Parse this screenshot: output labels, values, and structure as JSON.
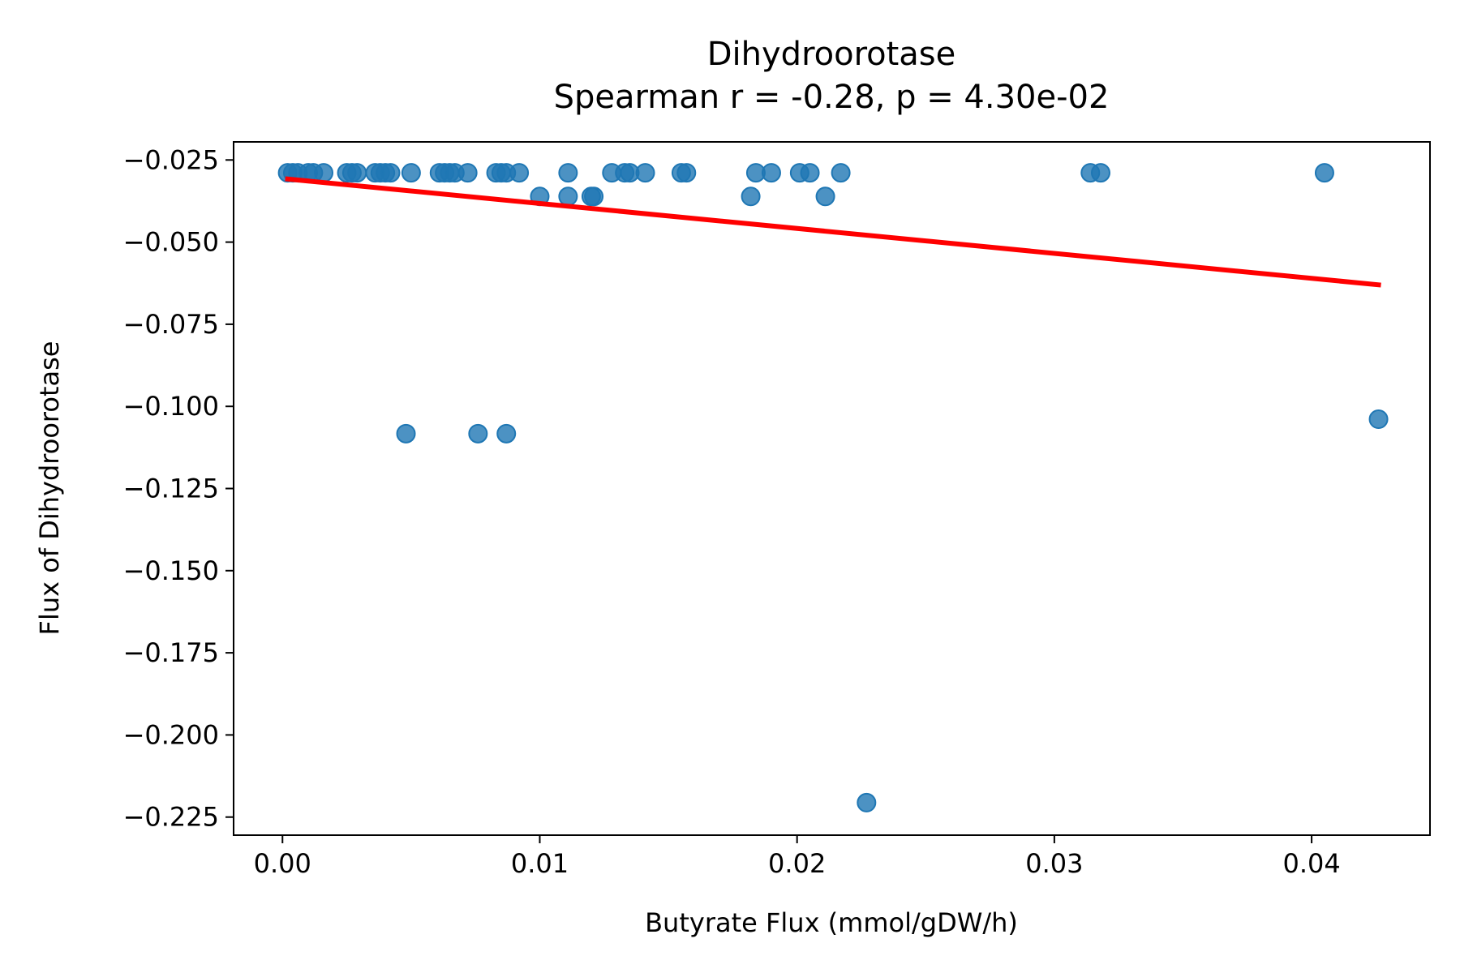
{
  "chart_data": {
    "type": "scatter",
    "title": "Dihydroorotase",
    "subtitle": "Spearman r = -0.28, p = 4.30e-02",
    "xlabel": "Butyrate Flux (mmol/gDW/h)",
    "ylabel": "Flux of Dihydroorotase",
    "xlim": [
      -0.0019,
      0.0446
    ],
    "ylim": [
      -0.2305,
      -0.0195
    ],
    "xticks": [
      0.0,
      0.01,
      0.02,
      0.03,
      0.04
    ],
    "xtick_labels": [
      "0.00",
      "0.01",
      "0.02",
      "0.03",
      "0.04"
    ],
    "yticks": [
      -0.025,
      -0.05,
      -0.075,
      -0.1,
      -0.125,
      -0.15,
      -0.175,
      -0.2,
      -0.225
    ],
    "ytick_labels": [
      "−0.025",
      "−0.050",
      "−0.075",
      "−0.100",
      "−0.125",
      "−0.150",
      "−0.175",
      "−0.200",
      "−0.225"
    ],
    "grid": false,
    "point_color": "#1f77b4",
    "line_color": "#ff0000",
    "points": [
      [
        0.0002,
        -0.0289
      ],
      [
        0.0004,
        -0.0289
      ],
      [
        0.0006,
        -0.0289
      ],
      [
        0.001,
        -0.0289
      ],
      [
        0.0012,
        -0.0289
      ],
      [
        0.0016,
        -0.0289
      ],
      [
        0.0025,
        -0.0289
      ],
      [
        0.0027,
        -0.0289
      ],
      [
        0.0029,
        -0.0289
      ],
      [
        0.0036,
        -0.0289
      ],
      [
        0.0038,
        -0.0289
      ],
      [
        0.004,
        -0.0289
      ],
      [
        0.0042,
        -0.0289
      ],
      [
        0.005,
        -0.0289
      ],
      [
        0.0061,
        -0.0289
      ],
      [
        0.0063,
        -0.0289
      ],
      [
        0.0065,
        -0.0289
      ],
      [
        0.0067,
        -0.0289
      ],
      [
        0.0072,
        -0.0289
      ],
      [
        0.0083,
        -0.0289
      ],
      [
        0.0085,
        -0.0289
      ],
      [
        0.0087,
        -0.0289
      ],
      [
        0.0092,
        -0.0289
      ],
      [
        0.0111,
        -0.0289
      ],
      [
        0.0128,
        -0.0289
      ],
      [
        0.0133,
        -0.0289
      ],
      [
        0.0135,
        -0.0289
      ],
      [
        0.0141,
        -0.0289
      ],
      [
        0.0155,
        -0.0289
      ],
      [
        0.0157,
        -0.0289
      ],
      [
        0.0184,
        -0.0289
      ],
      [
        0.019,
        -0.0289
      ],
      [
        0.0201,
        -0.0289
      ],
      [
        0.0205,
        -0.0289
      ],
      [
        0.0217,
        -0.0289
      ],
      [
        0.0314,
        -0.0289
      ],
      [
        0.0318,
        -0.0289
      ],
      [
        0.0405,
        -0.0289
      ],
      [
        0.01,
        -0.0361
      ],
      [
        0.0111,
        -0.0361
      ],
      [
        0.012,
        -0.0361
      ],
      [
        0.0121,
        -0.0361
      ],
      [
        0.0182,
        -0.0361
      ],
      [
        0.0211,
        -0.0361
      ],
      [
        0.0048,
        -0.1083
      ],
      [
        0.0076,
        -0.1083
      ],
      [
        0.0087,
        -0.1083
      ],
      [
        0.0426,
        -0.1039
      ],
      [
        0.0227,
        -0.2206
      ]
    ],
    "regression_line": {
      "x": [
        0.0002,
        0.0426
      ],
      "y": [
        -0.0308,
        -0.063
      ]
    }
  }
}
